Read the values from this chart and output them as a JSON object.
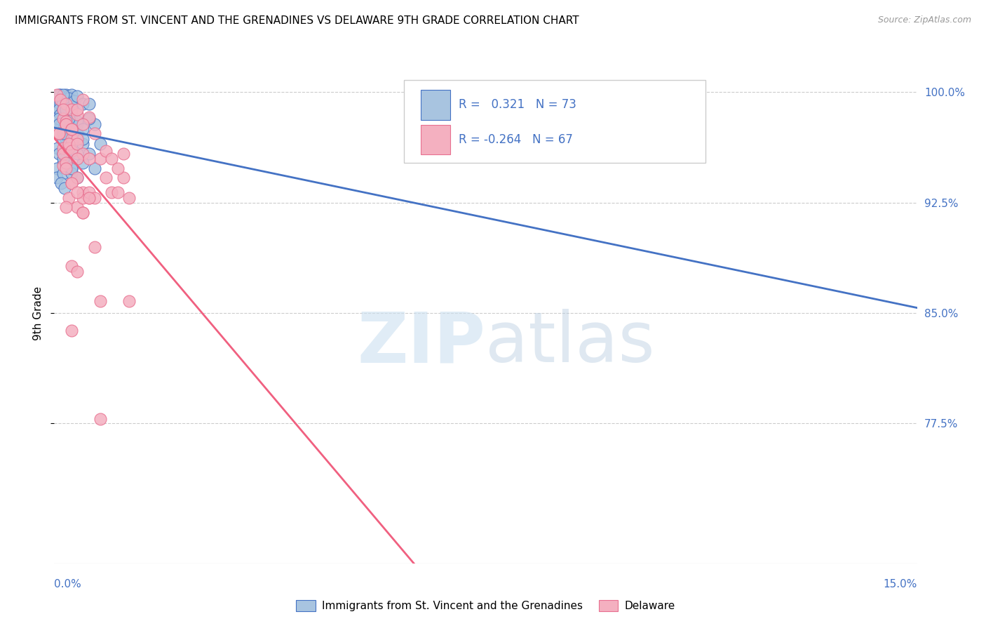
{
  "title": "IMMIGRANTS FROM ST. VINCENT AND THE GRENADINES VS DELAWARE 9TH GRADE CORRELATION CHART",
  "source": "Source: ZipAtlas.com",
  "ylabel": "9th Grade",
  "ytick_labels": [
    "100.0%",
    "92.5%",
    "85.0%",
    "77.5%"
  ],
  "ytick_values": [
    1.0,
    0.925,
    0.85,
    0.775
  ],
  "xlim": [
    0.0,
    0.15
  ],
  "ylim": [
    0.68,
    1.02
  ],
  "blue_R": 0.321,
  "blue_N": 73,
  "pink_R": -0.264,
  "pink_N": 67,
  "blue_color": "#a8c4e0",
  "blue_edge_color": "#4472c4",
  "pink_color": "#f4b0c0",
  "pink_edge_color": "#e87090",
  "blue_line_color": "#4472c4",
  "pink_line_color": "#f06080",
  "legend_label_blue": "Immigrants from St. Vincent and the Grenadines",
  "legend_label_pink": "Delaware",
  "blue_scatter_x": [
    0.0005,
    0.001,
    0.0015,
    0.002,
    0.001,
    0.0025,
    0.002,
    0.003,
    0.0008,
    0.0015,
    0.002,
    0.0025,
    0.001,
    0.0015,
    0.002,
    0.0018,
    0.003,
    0.0035,
    0.004,
    0.005,
    0.0012,
    0.002,
    0.003,
    0.0008,
    0.0015,
    0.002,
    0.003,
    0.004,
    0.0006,
    0.0015,
    0.002,
    0.0008,
    0.0015,
    0.002,
    0.003,
    0.0005,
    0.0015,
    0.003,
    0.002,
    0.0005,
    0.004,
    0.0015,
    0.002,
    0.005,
    0.003,
    0.006,
    0.0012,
    0.007,
    0.0018,
    0.003,
    0.004,
    0.005,
    0.0015,
    0.002,
    0.003,
    0.006,
    0.0008,
    0.002,
    0.004,
    0.0015,
    0.003,
    0.005,
    0.0025,
    0.007,
    0.0015,
    0.008,
    0.003,
    0.004,
    0.0008,
    0.005,
    0.002,
    0.006,
    0.0015
  ],
  "blue_scatter_y": [
    0.99,
    0.998,
    0.995,
    0.998,
    0.992,
    0.997,
    0.994,
    0.998,
    0.988,
    0.993,
    0.99,
    0.996,
    0.985,
    0.993,
    0.988,
    0.983,
    0.99,
    0.994,
    0.997,
    0.992,
    0.978,
    0.972,
    0.98,
    0.982,
    0.988,
    0.965,
    0.972,
    0.978,
    0.962,
    0.975,
    0.968,
    0.958,
    0.952,
    0.962,
    0.97,
    0.948,
    0.958,
    0.965,
    0.95,
    0.942,
    0.972,
    0.945,
    0.955,
    0.965,
    0.948,
    0.958,
    0.938,
    0.948,
    0.935,
    0.945,
    0.942,
    0.952,
    0.968,
    0.978,
    0.985,
    0.992,
    0.998,
    0.985,
    0.98,
    0.972,
    0.965,
    0.975,
    0.982,
    0.978,
    0.955,
    0.965,
    0.948,
    0.958,
    0.978,
    0.968,
    0.988,
    0.982,
    0.998
  ],
  "pink_scatter_x": [
    0.0005,
    0.001,
    0.002,
    0.003,
    0.0015,
    0.002,
    0.0008,
    0.004,
    0.002,
    0.003,
    0.005,
    0.0015,
    0.002,
    0.0008,
    0.003,
    0.004,
    0.0015,
    0.002,
    0.006,
    0.003,
    0.0015,
    0.004,
    0.0025,
    0.005,
    0.007,
    0.0025,
    0.003,
    0.008,
    0.004,
    0.0015,
    0.009,
    0.002,
    0.003,
    0.01,
    0.004,
    0.0025,
    0.005,
    0.006,
    0.003,
    0.011,
    0.004,
    0.012,
    0.005,
    0.003,
    0.006,
    0.013,
    0.004,
    0.007,
    0.002,
    0.005,
    0.008,
    0.003,
    0.006,
    0.004,
    0.002,
    0.009,
    0.01,
    0.005,
    0.011,
    0.006,
    0.003,
    0.012,
    0.007,
    0.004,
    0.013,
    0.008,
    0.005
  ],
  "pink_scatter_y": [
    0.998,
    0.995,
    0.992,
    0.988,
    0.982,
    0.978,
    0.972,
    0.985,
    0.98,
    0.975,
    0.995,
    0.988,
    0.978,
    0.972,
    0.968,
    0.988,
    0.962,
    0.978,
    0.983,
    0.975,
    0.958,
    0.968,
    0.962,
    0.978,
    0.972,
    0.965,
    0.96,
    0.955,
    0.965,
    0.95,
    0.96,
    0.952,
    0.938,
    0.932,
    0.942,
    0.928,
    0.932,
    0.928,
    0.938,
    0.932,
    0.922,
    0.942,
    0.928,
    0.882,
    0.932,
    0.858,
    0.878,
    0.928,
    0.922,
    0.918,
    0.858,
    0.838,
    0.928,
    0.932,
    0.948,
    0.942,
    0.955,
    0.958,
    0.948,
    0.955,
    0.975,
    0.958,
    0.895,
    0.955,
    0.928,
    0.778,
    0.918
  ]
}
